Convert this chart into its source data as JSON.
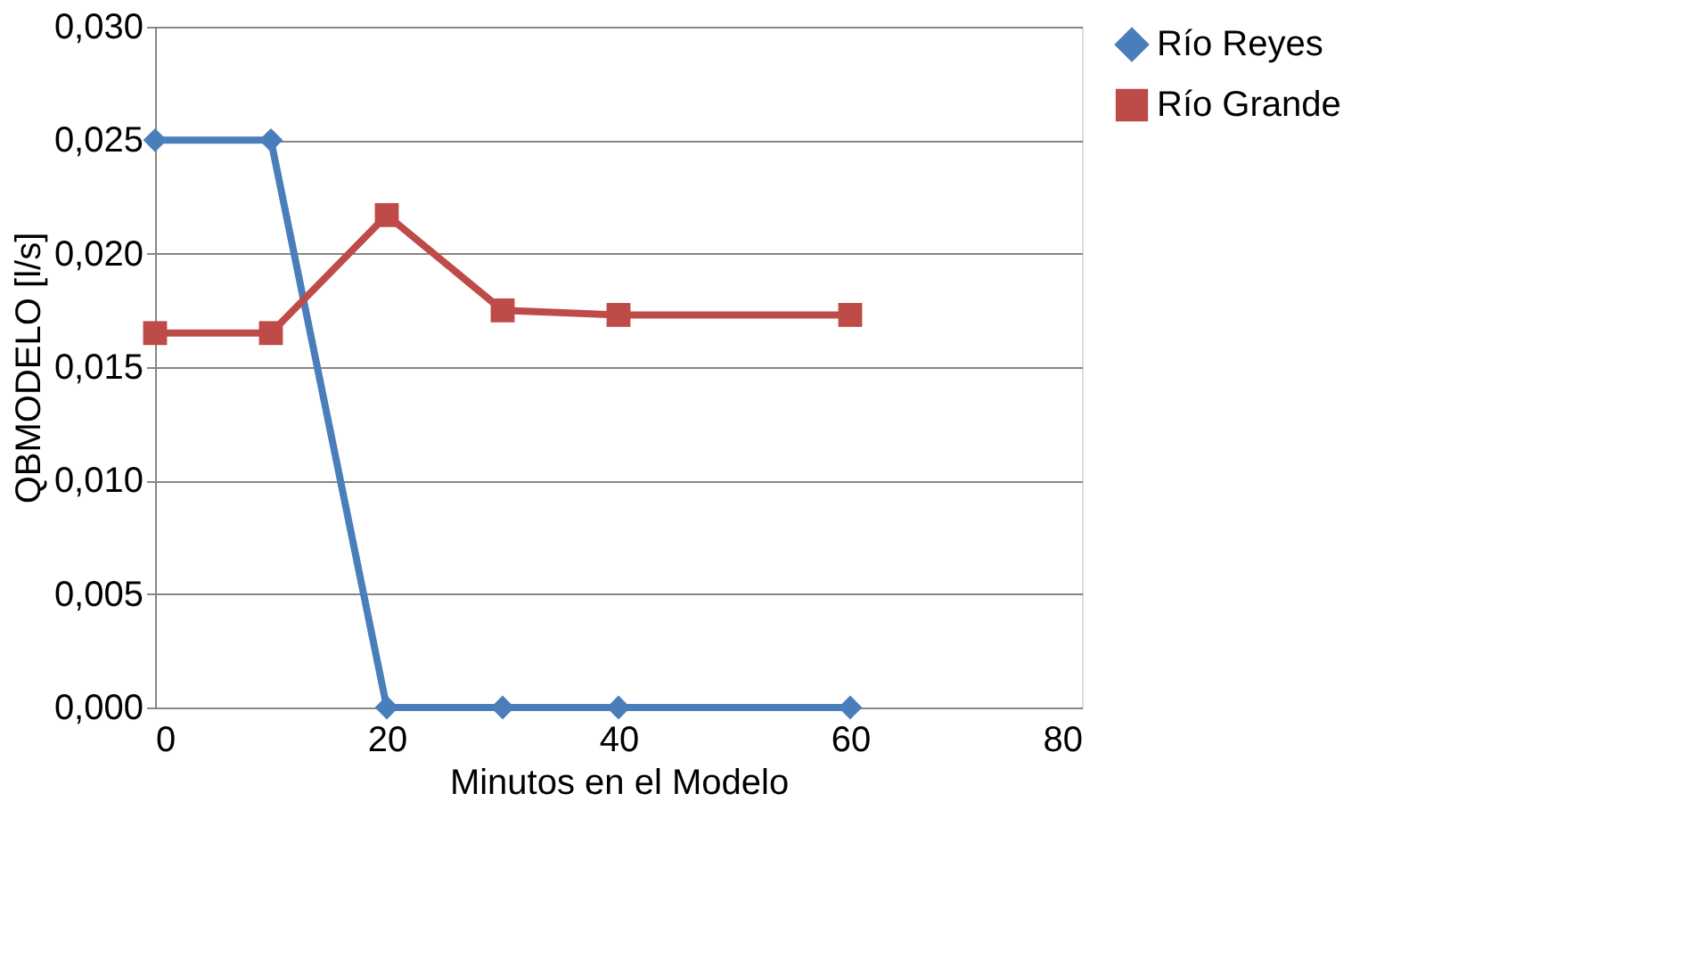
{
  "chart_data": {
    "type": "line",
    "xlabel": "Minutos en el Modelo",
    "ylabel": "QBMODELO [l/s]",
    "x": [
      0,
      10,
      20,
      30,
      40,
      60
    ],
    "series": [
      {
        "name": "Río Reyes",
        "color": "#4a7ebb",
        "marker": "diamond",
        "values": [
          0.025,
          0.025,
          0,
          0,
          0,
          0
        ]
      },
      {
        "name": "Río Grande",
        "color": "#be4b48",
        "marker": "square",
        "values": [
          0.0165,
          0.0165,
          0.0217,
          0.0175,
          0.0173,
          0.0173
        ]
      }
    ],
    "xlim": [
      0,
      80
    ],
    "xticks": [
      0,
      20,
      40,
      60,
      80
    ],
    "ylim": [
      0,
      0.03
    ],
    "yticks": [
      {
        "value": 0,
        "label": "0,000"
      },
      {
        "value": 0.005,
        "label": "0,005"
      },
      {
        "value": 0.01,
        "label": "0,010"
      },
      {
        "value": 0.015,
        "label": "0,015"
      },
      {
        "value": 0.02,
        "label": "0,020"
      },
      {
        "value": 0.025,
        "label": "0,025"
      },
      {
        "value": 0.03,
        "label": "0,030"
      }
    ],
    "grid": "y",
    "legend": "right",
    "line_style": "solid"
  }
}
